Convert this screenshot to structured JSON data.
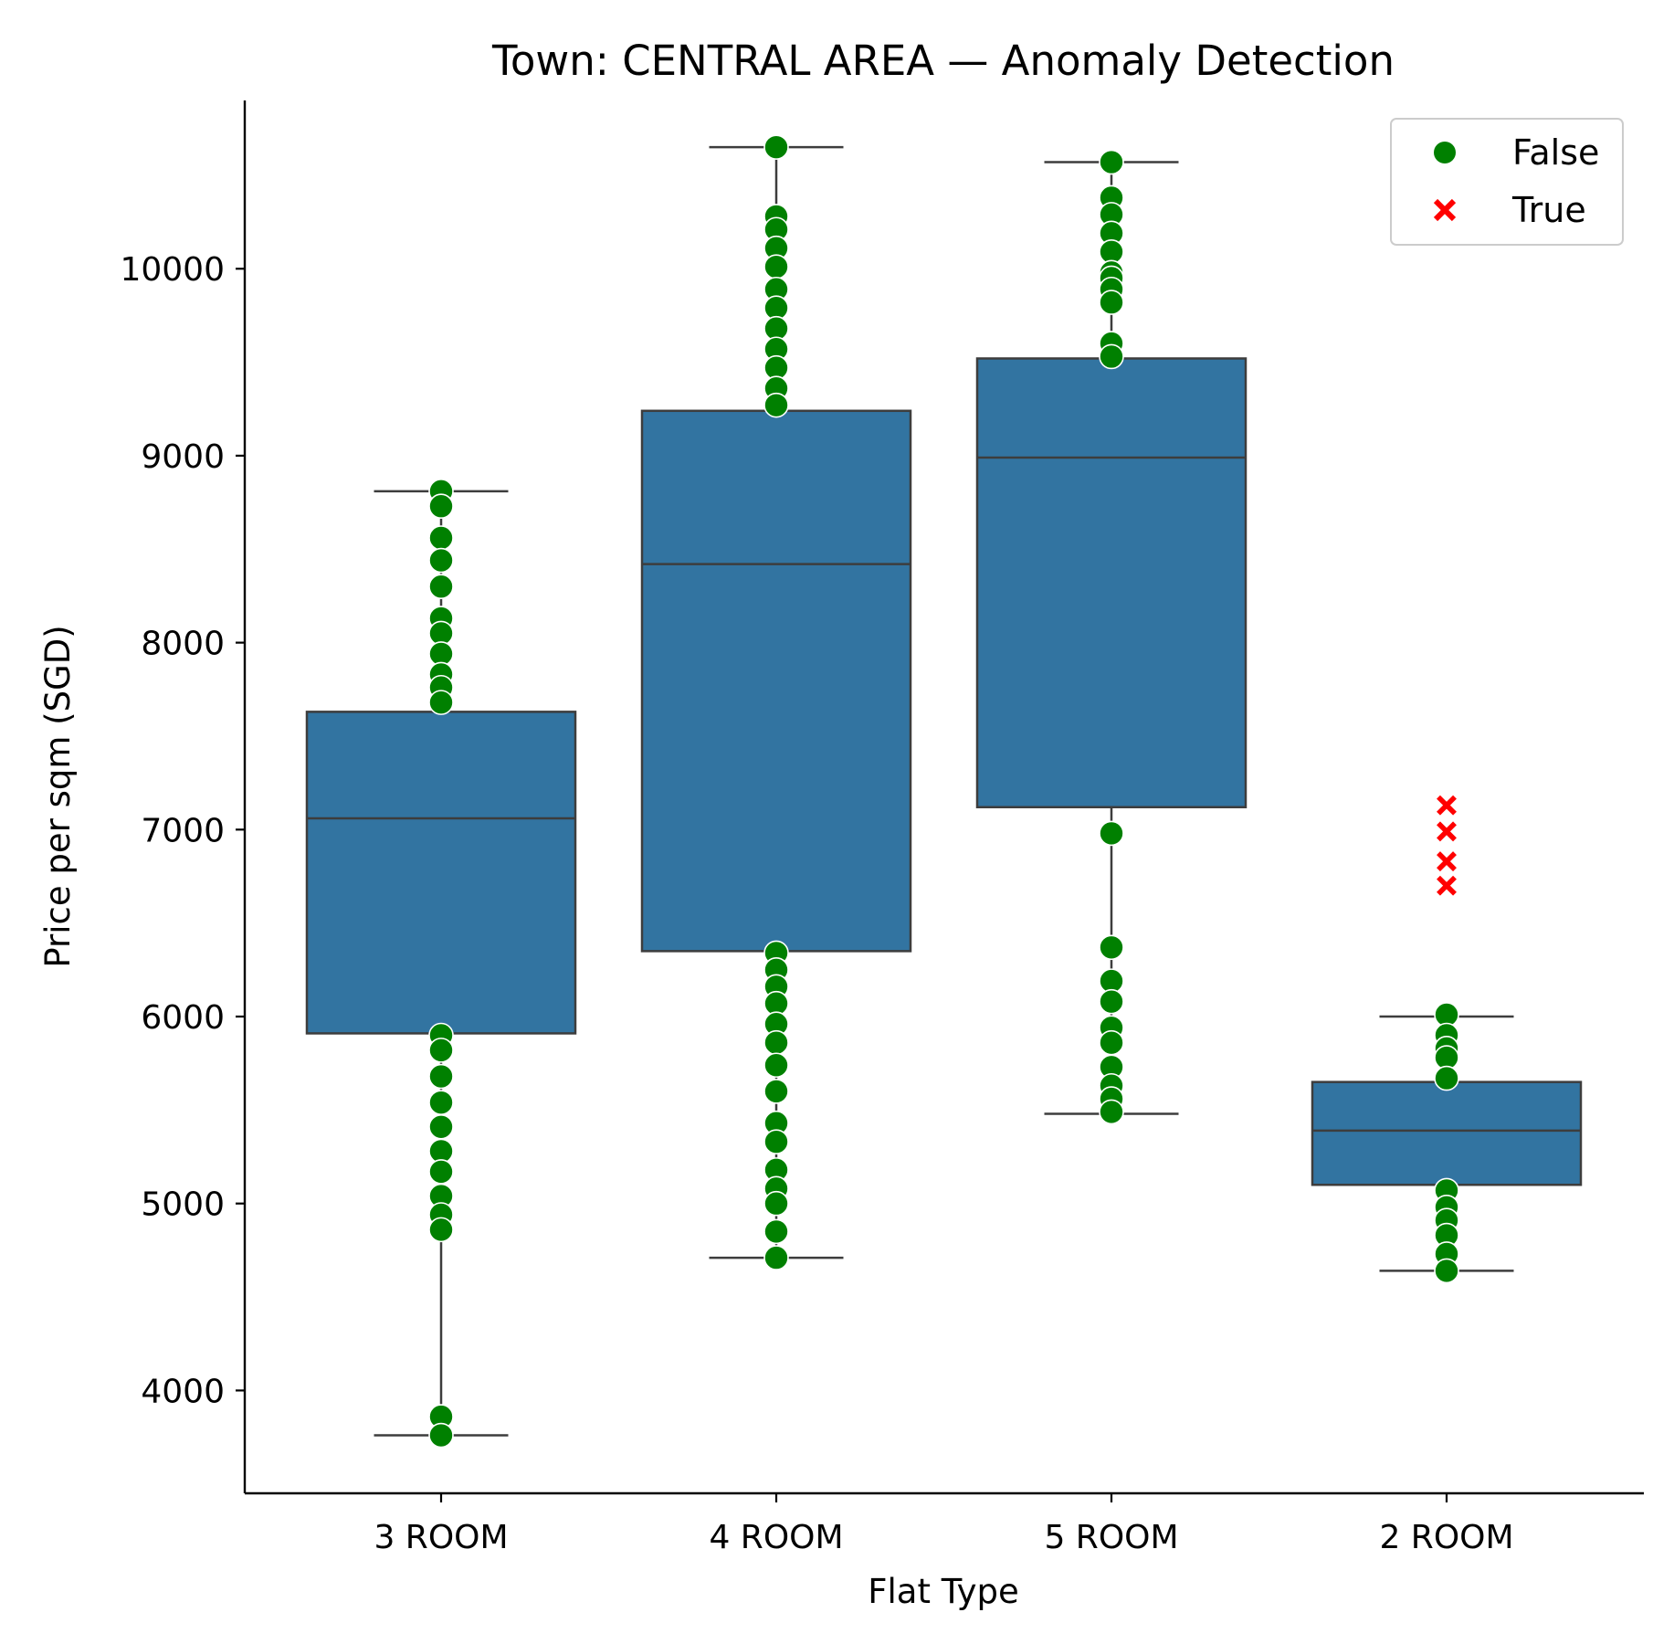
{
  "chart_data": {
    "type": "box",
    "title": "Town: CENTRAL AREA — Anomaly Detection",
    "xlabel": "Flat Type",
    "ylabel": "Price per sqm (SGD)",
    "categories": [
      "3 ROOM",
      "4 ROOM",
      "5 ROOM",
      "2 ROOM"
    ],
    "ylim": [
      3450,
      10900
    ],
    "yticks": [
      4000,
      5000,
      6000,
      7000,
      8000,
      9000,
      10000
    ],
    "grid": false,
    "legend_position": "top-right",
    "colors": {
      "box": "#3274a1",
      "box_edge": "#3d3d3d",
      "normal": "#008000",
      "anomaly": "#ff0000"
    },
    "legend": [
      {
        "label": "False",
        "marker": "circle",
        "color": "#008000"
      },
      {
        "label": "True",
        "marker": "x",
        "color": "#ff0000"
      }
    ],
    "boxes": [
      {
        "category": "3 ROOM",
        "whisker_low": 3760,
        "q1": 5910,
        "median": 7060,
        "q3": 7630,
        "whisker_high": 8810
      },
      {
        "category": "4 ROOM",
        "whisker_low": 4710,
        "q1": 6350,
        "median": 8420,
        "q3": 9240,
        "whisker_high": 10650
      },
      {
        "category": "5 ROOM",
        "whisker_low": 5480,
        "q1": 7120,
        "median": 8990,
        "q3": 9520,
        "whisker_high": 10570
      },
      {
        "category": "2 ROOM",
        "whisker_low": 4640,
        "q1": 5100,
        "median": 5390,
        "q3": 5650,
        "whisker_high": 6000
      }
    ],
    "points": [
      {
        "category": "3 ROOM",
        "anomaly": false,
        "values": [
          8810,
          8730,
          8560,
          8440,
          8300,
          8130,
          8050,
          7940,
          7830,
          7760,
          7680,
          5900,
          5820,
          5680,
          5540,
          5410,
          5280,
          5170,
          5040,
          4940,
          4860,
          3860,
          3760
        ]
      },
      {
        "category": "4 ROOM",
        "anomaly": false,
        "values": [
          10650,
          10280,
          10210,
          10110,
          10010,
          9890,
          9790,
          9680,
          9570,
          9470,
          9360,
          9270,
          6340,
          6250,
          6160,
          6070,
          5960,
          5860,
          5740,
          5600,
          5430,
          5330,
          5180,
          5080,
          5000,
          4850,
          4710
        ]
      },
      {
        "category": "5 ROOM",
        "anomaly": false,
        "values": [
          10570,
          10380,
          10290,
          10190,
          10090,
          9980,
          9950,
          9890,
          9820,
          9600,
          9530,
          6980,
          6370,
          6190,
          6080,
          5940,
          5860,
          5730,
          5630,
          5560,
          5490
        ]
      },
      {
        "category": "2 ROOM",
        "anomaly": false,
        "values": [
          6010,
          5900,
          5830,
          5780,
          5670,
          5070,
          4980,
          4910,
          4830,
          4730,
          4640
        ]
      },
      {
        "category": "2 ROOM",
        "anomaly": true,
        "values": [
          7130,
          6990,
          6830,
          6700
        ]
      }
    ]
  }
}
